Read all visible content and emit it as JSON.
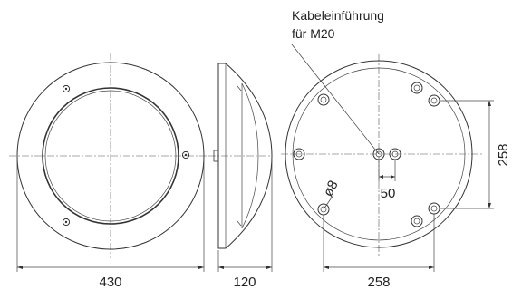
{
  "callout": {
    "line1": "Kabeleinführung",
    "line2": "für M20"
  },
  "dimensions": {
    "front_width": "430",
    "side_depth": "120",
    "back_width": "258",
    "back_height": "258",
    "cable_offset": "50",
    "hole_diameter": "ø8"
  }
}
